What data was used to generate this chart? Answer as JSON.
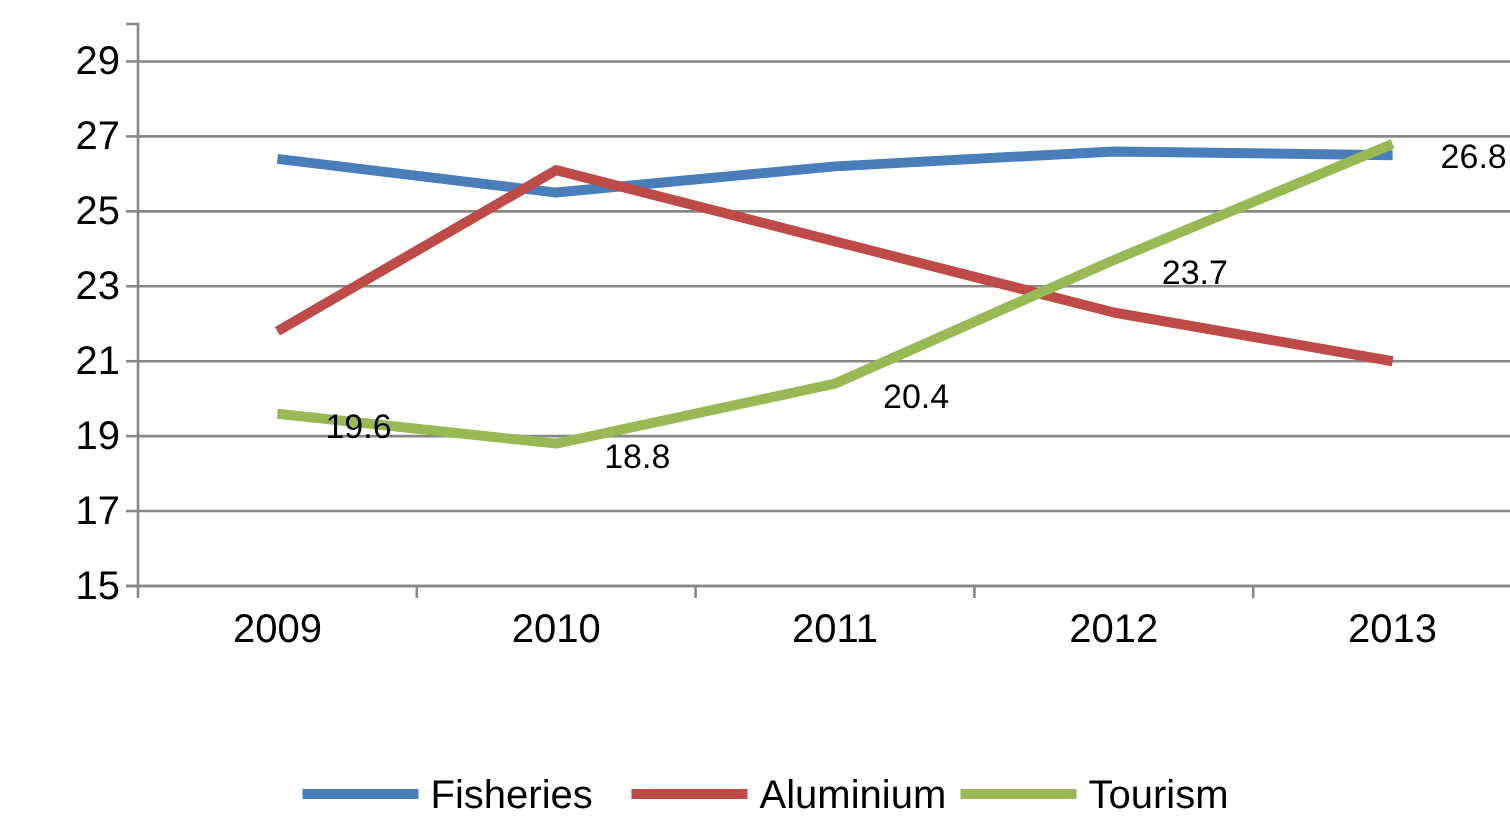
{
  "chart_data": {
    "type": "line",
    "categories": [
      "2009",
      "2010",
      "2011",
      "2012",
      "2013"
    ],
    "series": [
      {
        "name": "Fisheries",
        "color": "#4a7ebb",
        "values": [
          26.4,
          25.5,
          26.2,
          26.6,
          26.5
        ]
      },
      {
        "name": "Aluminium",
        "color": "#be4b48",
        "values": [
          21.8,
          26.1,
          24.2,
          22.3,
          21.0
        ]
      },
      {
        "name": "Tourism",
        "color": "#98b954",
        "values": [
          19.6,
          18.8,
          20.4,
          23.7,
          26.8
        ],
        "value_labels": [
          "19.6",
          "18.8",
          "20.4",
          "23.7",
          "26.8"
        ]
      }
    ],
    "ylim": [
      15,
      30
    ],
    "yticks": [
      15,
      17,
      19,
      21,
      23,
      25,
      27,
      29
    ],
    "grid": "y",
    "legend": "bottom",
    "marker": "none",
    "line_style": "solid"
  }
}
